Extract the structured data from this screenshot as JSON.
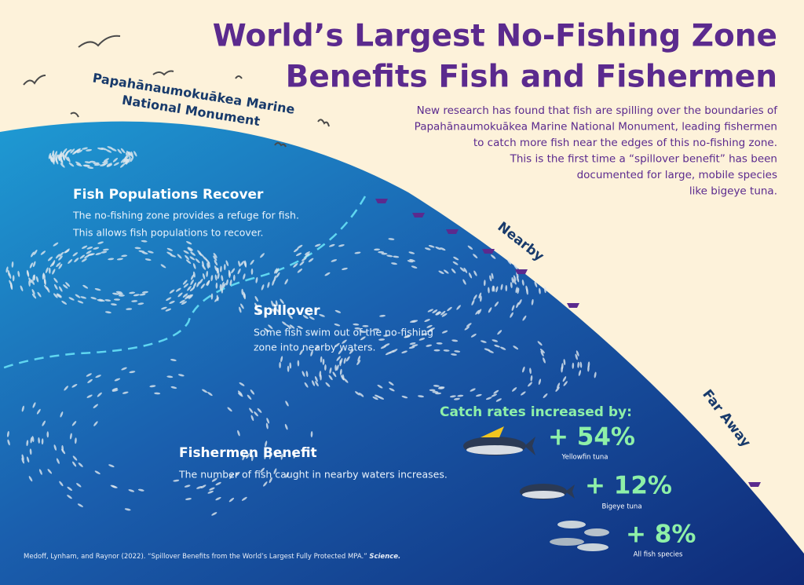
{
  "header": {
    "title_lines": [
      "World’s Largest No-Fishing Zone",
      "Benefits Fish and Fishermen"
    ],
    "subtitle_lines": [
      "New research has found that fish are spilling over the boundaries of",
      "Papahānaumokuākea Marine National Monument, leading fishermen",
      "to catch more fish near the edges of this no-fishing zone.",
      "This is the first time a “spillover benefit” has been",
      "documented for large, mobile species",
      "like bigeye tuna."
    ]
  },
  "monument_label": [
    "Papahānaumokuākea Marine",
    "National Monument"
  ],
  "zones": {
    "nearby": "Nearby",
    "far_away": "Far Away"
  },
  "sections": [
    {
      "heading": "Fish Populations Recover",
      "body": [
        "The no-fishing zone provides a refuge for fish.",
        "This allows fish populations to recover."
      ]
    },
    {
      "heading": "Spillover",
      "body": [
        "Some fish swim out of the no-fishing",
        "zone into nearby waters."
      ]
    },
    {
      "heading": "Fishermen Benefit",
      "body": [
        "The number of fish caught in nearby waters increases."
      ]
    }
  ],
  "catch_rates": {
    "heading": "Catch rates increased by:",
    "items": [
      {
        "value": "+ 54%",
        "species": "Yellowfin tuna"
      },
      {
        "value": "+ 12%",
        "species": "Bigeye tuna"
      },
      {
        "value": "+ 8%",
        "species": "All fish species"
      }
    ]
  },
  "citation": {
    "text": "Medoff, Lynham, and Raynor (2022). “Spillover Benefits from the World’s Largest Fully Protected MPA.” ",
    "journal": "Science."
  }
}
